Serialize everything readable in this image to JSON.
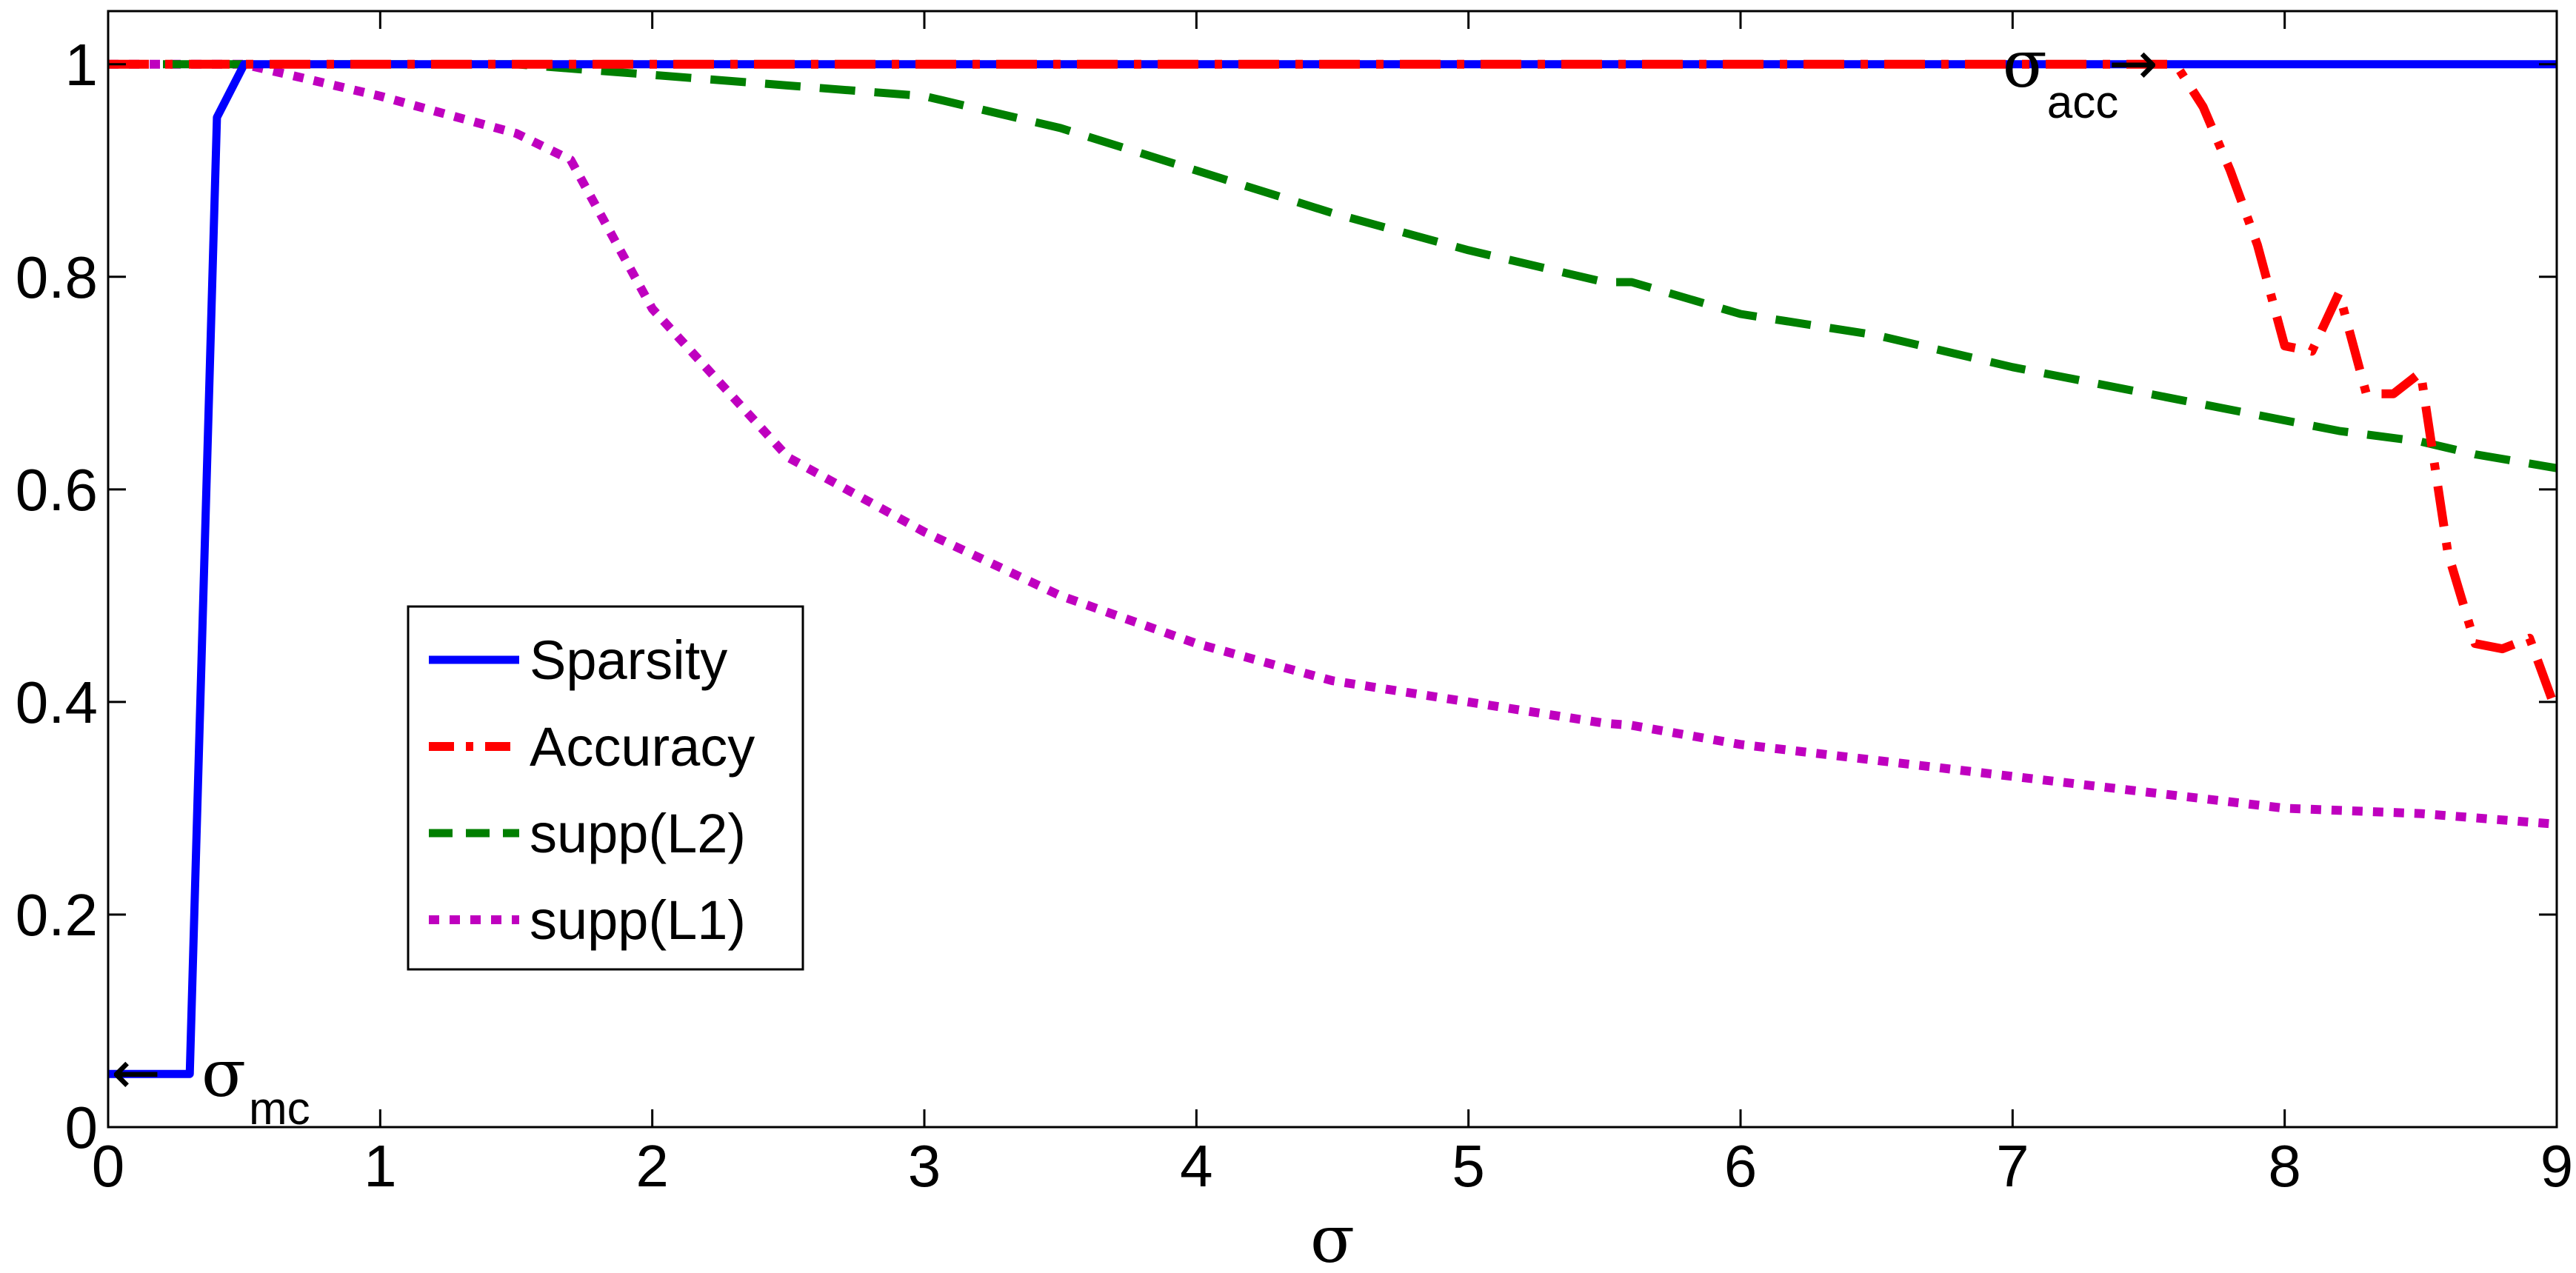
{
  "chart_data": {
    "type": "line",
    "title": "",
    "xlabel": "σ",
    "ylabel": "",
    "xlim": [
      0,
      9
    ],
    "ylim": [
      0,
      1.05
    ],
    "xticks": [
      0,
      1,
      2,
      3,
      4,
      5,
      6,
      7,
      8,
      9
    ],
    "xtick_labels": [
      "0",
      "1",
      "2",
      "3",
      "4",
      "5",
      "6",
      "7",
      "8",
      "9"
    ],
    "yticks": [
      0,
      0.2,
      0.4,
      0.6,
      0.8,
      1
    ],
    "ytick_labels": [
      "0",
      "0.2",
      "0.4",
      "0.6",
      "0.8",
      "1"
    ],
    "grid": false,
    "legend_position": "center-left",
    "series": [
      {
        "name": "Sparsity",
        "color": "#0000ff",
        "style": "solid",
        "x": [
          0,
          0.3,
          0.4,
          0.5,
          9
        ],
        "y": [
          0.05,
          0.05,
          0.95,
          1.0,
          1.0
        ]
      },
      {
        "name": "Accuracy",
        "color": "#ff0000",
        "style": "dashdot",
        "x": [
          0,
          7.6,
          7.7,
          7.8,
          7.9,
          8.0,
          8.1,
          8.2,
          8.3,
          8.4,
          8.5,
          8.6,
          8.7,
          8.8,
          8.9,
          9.0
        ],
        "y": [
          1.0,
          1.0,
          0.96,
          0.9,
          0.83,
          0.735,
          0.73,
          0.785,
          0.69,
          0.69,
          0.71,
          0.54,
          0.455,
          0.45,
          0.46,
          0.39
        ]
      },
      {
        "name": "supp(L2)",
        "color": "#007f00",
        "style": "dashed",
        "x": [
          0,
          1.5,
          2.0,
          2.5,
          3.0,
          3.5,
          4.0,
          4.5,
          5.0,
          5.5,
          5.6,
          6.0,
          6.5,
          7.0,
          7.5,
          8.0,
          8.2,
          8.5,
          8.7,
          9.0
        ],
        "y": [
          1.0,
          1.0,
          0.99,
          0.98,
          0.97,
          0.94,
          0.9,
          0.86,
          0.825,
          0.795,
          0.795,
          0.765,
          0.745,
          0.715,
          0.69,
          0.665,
          0.655,
          0.645,
          0.633,
          0.62
        ]
      },
      {
        "name": "supp(L1)",
        "color": "#bf00bf",
        "style": "dotted",
        "x": [
          0,
          0.5,
          1.0,
          1.5,
          1.7,
          2.0,
          2.5,
          3.0,
          3.5,
          4.0,
          4.5,
          5.0,
          5.5,
          5.6,
          6.0,
          6.5,
          7.0,
          7.5,
          8.0,
          8.5,
          9.0
        ],
        "y": [
          1.0,
          1.0,
          0.97,
          0.935,
          0.91,
          0.77,
          0.63,
          0.56,
          0.5,
          0.455,
          0.42,
          0.4,
          0.38,
          0.378,
          0.36,
          0.345,
          0.33,
          0.315,
          0.3,
          0.295,
          0.285
        ]
      }
    ],
    "annotations": [
      {
        "name": "sigma-mc",
        "symbol": "σ",
        "subscript": "mc",
        "arrow": "←",
        "x": 0,
        "y": 0.05
      },
      {
        "name": "sigma-acc",
        "symbol": "σ",
        "subscript": "acc",
        "arrow": "→",
        "x": 7.6,
        "y": 1.0
      }
    ]
  }
}
